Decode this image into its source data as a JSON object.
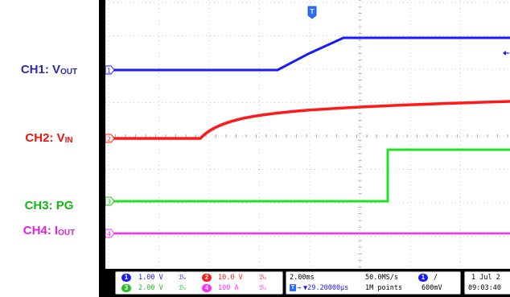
{
  "channel_labels": [
    {
      "prefix": "CH1: V",
      "sub": "OUT",
      "color": "#2b2ba8"
    },
    {
      "prefix": "CH2: V",
      "sub": "IN",
      "color": "#e8140f"
    },
    {
      "prefix": "CH3: PG",
      "sub": "",
      "color": "#13b613"
    },
    {
      "prefix": "CH4: I",
      "sub": "OUT",
      "color": "#e11ee1"
    }
  ],
  "scope": {
    "trigger_marker": "T",
    "channel_markers": [
      "1",
      "2",
      "3",
      "4"
    ],
    "trace_colors": {
      "ch1": "#1a1aff",
      "ch2": "#ff1a1a",
      "ch3": "#22e022",
      "ch4": "#ff2aff"
    }
  },
  "status": {
    "ch1_scale": "1.00 V",
    "ch2_scale": "10.0 V",
    "ch3_scale": "2.00 V",
    "ch4_scale": "100 A",
    "bw_symbol": "ℬᵥ",
    "time_div": "2.00ms",
    "sample_rate": "50.0MS/s",
    "trigger_pos": "▼29.20000µs",
    "record_length": "1M points",
    "trigger_source": "1",
    "trigger_slope": "/",
    "trigger_level": "600mV",
    "date": "1 Jul  2",
    "time": "09:03:40"
  }
}
